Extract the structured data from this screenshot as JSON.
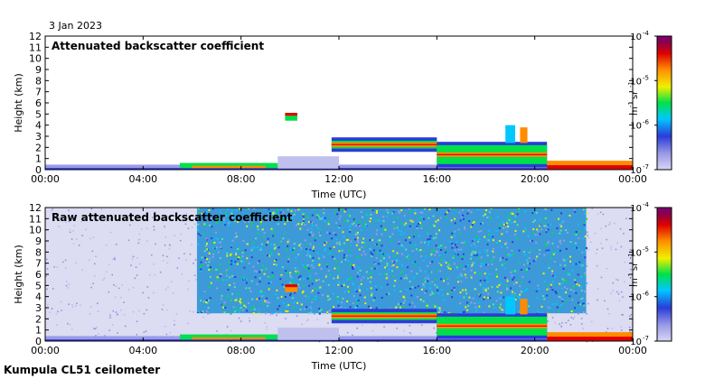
{
  "header": {
    "date": "3 Jan 2023"
  },
  "footer": {
    "instrument": "Kumpula CL51 ceilometer"
  },
  "colorbar": {
    "colors": [
      "#d6d6f5",
      "#9a9ae6",
      "#2a3cd8",
      "#00c8ff",
      "#00e04a",
      "#f0f000",
      "#ff8c00",
      "#e00000",
      "#8b0048",
      "#7a0078"
    ],
    "ticks": [
      {
        "base": "10",
        "exp": "-4",
        "frac": 0
      },
      {
        "base": "10",
        "exp": "-5",
        "frac": 0.333
      },
      {
        "base": "10",
        "exp": "-6",
        "frac": 0.667
      },
      {
        "base": "10",
        "exp": "-7",
        "frac": 1
      }
    ],
    "unit_m": "m",
    "unit_m_exp": "-1",
    "unit_sr": "sr",
    "unit_sr_exp": "-1"
  },
  "chart_data": [
    {
      "type": "heatmap",
      "title": "Attenuated backscatter coefficient",
      "xlabel": "Time (UTC)",
      "ylabel": "Height (km)",
      "xlim": [
        0,
        24
      ],
      "ylim": [
        0,
        12
      ],
      "xticks": [
        "00:00",
        "04:00",
        "08:00",
        "12:00",
        "16:00",
        "20:00",
        "00:00"
      ],
      "yticks": [
        "0",
        "1",
        "2",
        "3",
        "4",
        "5",
        "6",
        "7",
        "8",
        "9",
        "10",
        "11",
        "12"
      ],
      "colorbar_range": [
        "1e-7",
        "1e-4"
      ],
      "features": [
        {
          "name": "boundary_layer",
          "t_start": 0,
          "t_end": 24,
          "h_top": 0.4
        },
        {
          "name": "cloud_layer",
          "t_start": 11.7,
          "t_end": 16,
          "h_base": 1.9,
          "h_top": 2.6
        },
        {
          "name": "cloud_layer",
          "t_start": 16,
          "t_end": 20.5,
          "h_base": 0.5,
          "h_top": 2.2
        },
        {
          "name": "elevated_cloud",
          "t_start": 9.8,
          "t_end": 10.3,
          "h_base": 4.4,
          "h_top": 5.1
        }
      ]
    },
    {
      "type": "heatmap",
      "title": "Raw attenuated backscatter coefficient",
      "xlabel": "Time (UTC)",
      "ylabel": "Height (km)",
      "xlim": [
        0,
        24
      ],
      "ylim": [
        0,
        12
      ],
      "xticks": [
        "00:00",
        "04:00",
        "08:00",
        "12:00",
        "16:00",
        "20:00",
        "00:00"
      ],
      "yticks": [
        "0",
        "1",
        "2",
        "3",
        "4",
        "5",
        "6",
        "7",
        "8",
        "9",
        "10",
        "11",
        "12"
      ],
      "colorbar_range": [
        "1e-7",
        "1e-4"
      ],
      "features": [
        {
          "name": "daylight_noise",
          "t_start": 6.2,
          "t_end": 22.1,
          "h_base": 2.5,
          "h_top": 12
        },
        {
          "name": "cloud_layer",
          "t_start": 11.7,
          "t_end": 16,
          "h_base": 1.9,
          "h_top": 2.6
        },
        {
          "name": "cloud_layer",
          "t_start": 16,
          "t_end": 20.5,
          "h_base": 0.5,
          "h_top": 2.2
        }
      ]
    }
  ]
}
